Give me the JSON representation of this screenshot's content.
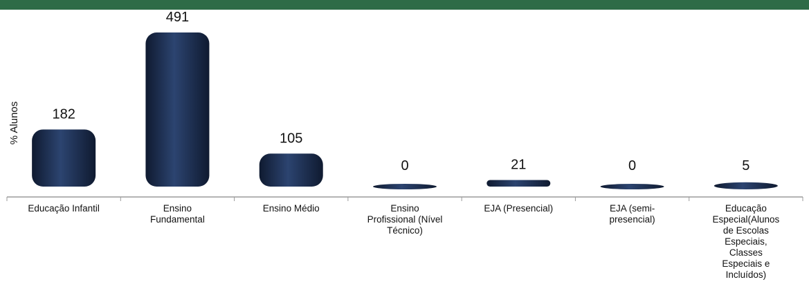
{
  "theme": {
    "top_bar_color": "#2e6b47",
    "bar_color": "#1b2b4c",
    "axis_color": "#9a9a9a"
  },
  "chart_data": {
    "type": "bar",
    "ylabel": "% Alunos",
    "categories": [
      [
        "Educação Infantil"
      ],
      [
        "Ensino",
        "Fundamental"
      ],
      [
        "Ensino Médio"
      ],
      [
        "Ensino",
        "Profissional (Nível",
        "Técnico)"
      ],
      [
        "EJA (Presencial)"
      ],
      [
        "EJA (semi-",
        "presencial)"
      ],
      [
        "Educação",
        "Especial(Alunos",
        "de Escolas",
        "Especiais,",
        "Classes",
        "Especiais e",
        "Incluídos)"
      ]
    ],
    "values": [
      182,
      491,
      105,
      0,
      21,
      0,
      5
    ],
    "data_labels": [
      "182",
      "491",
      "105",
      "0",
      "21",
      "0",
      "5"
    ],
    "ylim": [
      0,
      491
    ]
  }
}
